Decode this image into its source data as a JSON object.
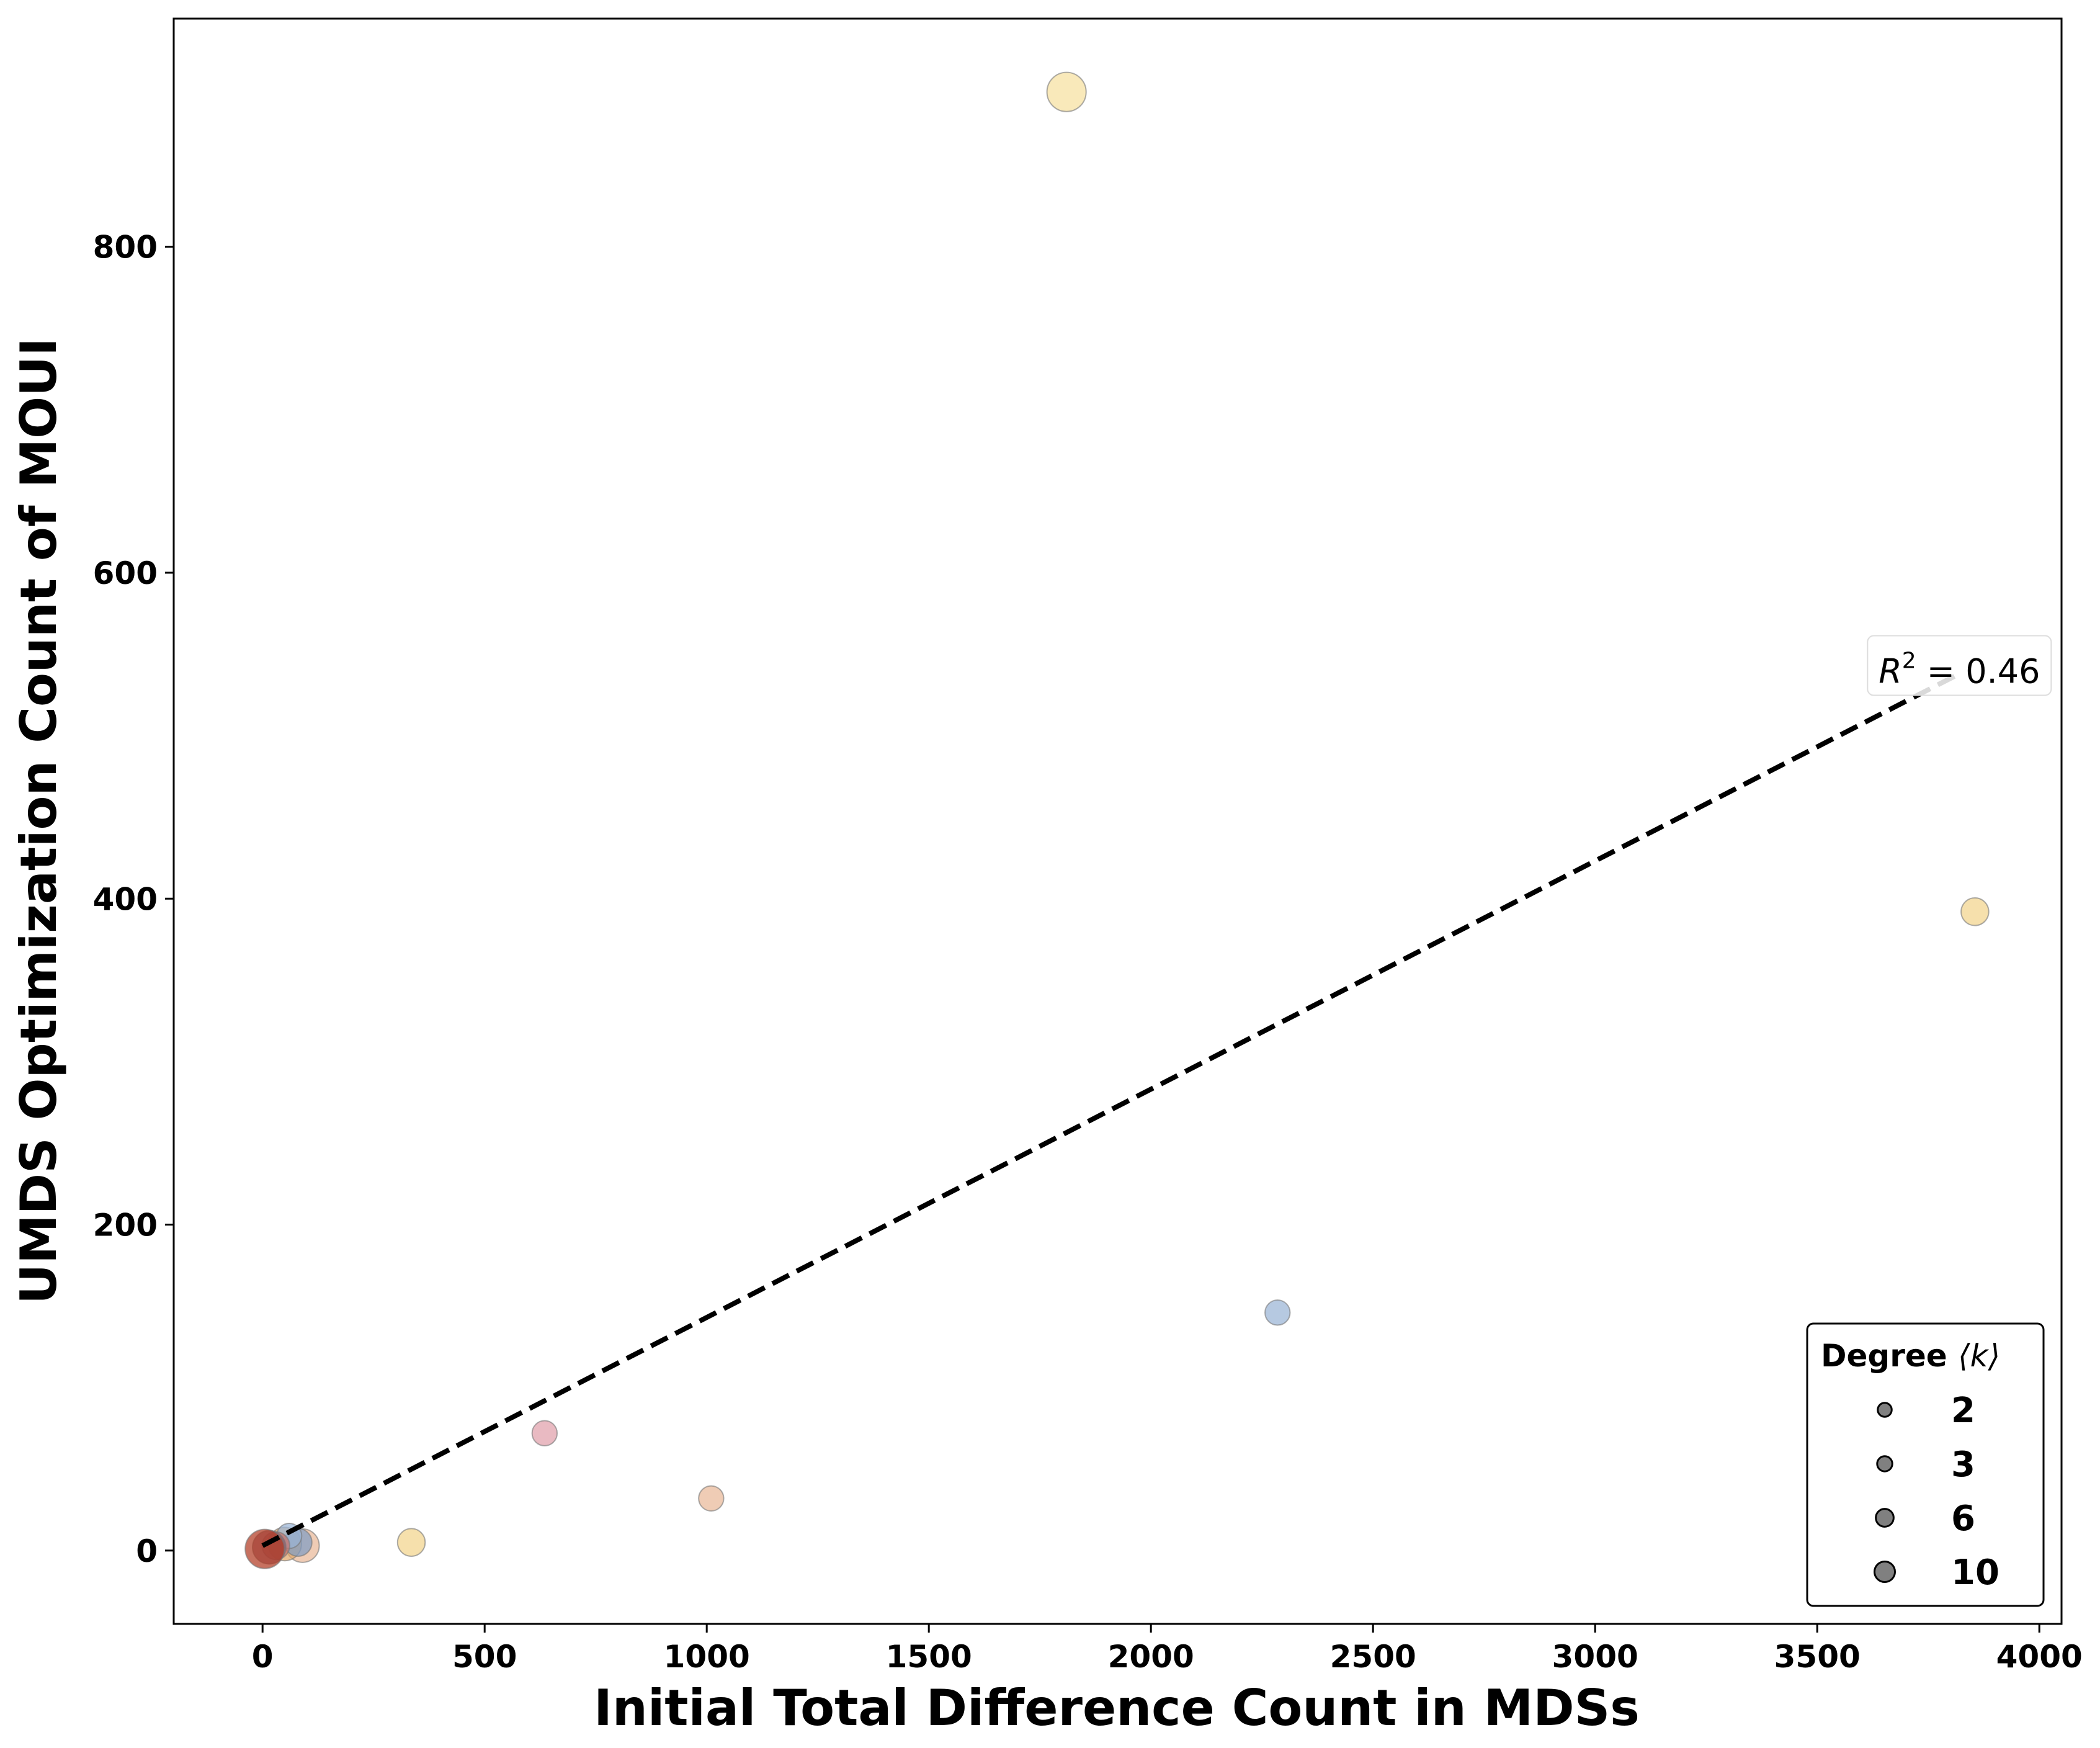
{
  "chart_data": {
    "type": "scatter",
    "xlabel": "Initial Total Difference Count in MDSs",
    "ylabel": "UMDS Optimization Count of MOUI",
    "xlim": [
      -200,
      4050
    ],
    "ylim": [
      -45,
      940
    ],
    "xticks": [
      0,
      500,
      1000,
      1500,
      2000,
      2500,
      3000,
      3500,
      4000
    ],
    "yticks": [
      0,
      200,
      400,
      600,
      800
    ],
    "grid": false,
    "points": [
      {
        "x": 1810,
        "y": 895,
        "degree": 10,
        "color": "#f7e0a0"
      },
      {
        "x": 3855,
        "y": 392,
        "degree": 3,
        "color": "#f2d48c"
      },
      {
        "x": 2285,
        "y": 146,
        "degree": 2,
        "color": "#9ab4d6"
      },
      {
        "x": 635,
        "y": 72,
        "degree": 2,
        "color": "#e0a0aa"
      },
      {
        "x": 1010,
        "y": 32,
        "degree": 2,
        "color": "#e9b899"
      },
      {
        "x": 335,
        "y": 5,
        "degree": 3,
        "color": "#f2d48c"
      },
      {
        "x": 90,
        "y": 3,
        "degree": 6,
        "color": "#e9b899"
      },
      {
        "x": 50,
        "y": 4,
        "degree": 6,
        "color": "#e0a86a"
      },
      {
        "x": 80,
        "y": 5,
        "degree": 3,
        "color": "#7f9cc4"
      },
      {
        "x": 60,
        "y": 9,
        "degree": 2,
        "color": "#9ab4d6"
      },
      {
        "x": 30,
        "y": 3,
        "degree": 3,
        "color": "#c8716a"
      },
      {
        "x": 15,
        "y": 2,
        "degree": 6,
        "color": "#8a5a70"
      },
      {
        "x": 5,
        "y": 1,
        "degree": 10,
        "color": "#b23a22"
      }
    ],
    "fit_line": {
      "style": "dashed",
      "x": [
        0,
        3820
      ],
      "y": [
        3,
        538
      ]
    },
    "annotation": {
      "text_prefix": "R",
      "superscript": "2",
      "text_suffix": " = 0.46",
      "x": 3820,
      "y": 540
    },
    "legend": {
      "title_text": "Degree ",
      "title_symbol": "⟨k⟩",
      "placement": "lower-right",
      "entries": [
        {
          "label": "2",
          "degree": 2
        },
        {
          "label": "3",
          "degree": 3
        },
        {
          "label": "6",
          "degree": 6
        },
        {
          "label": "10",
          "degree": 10
        }
      ]
    }
  }
}
